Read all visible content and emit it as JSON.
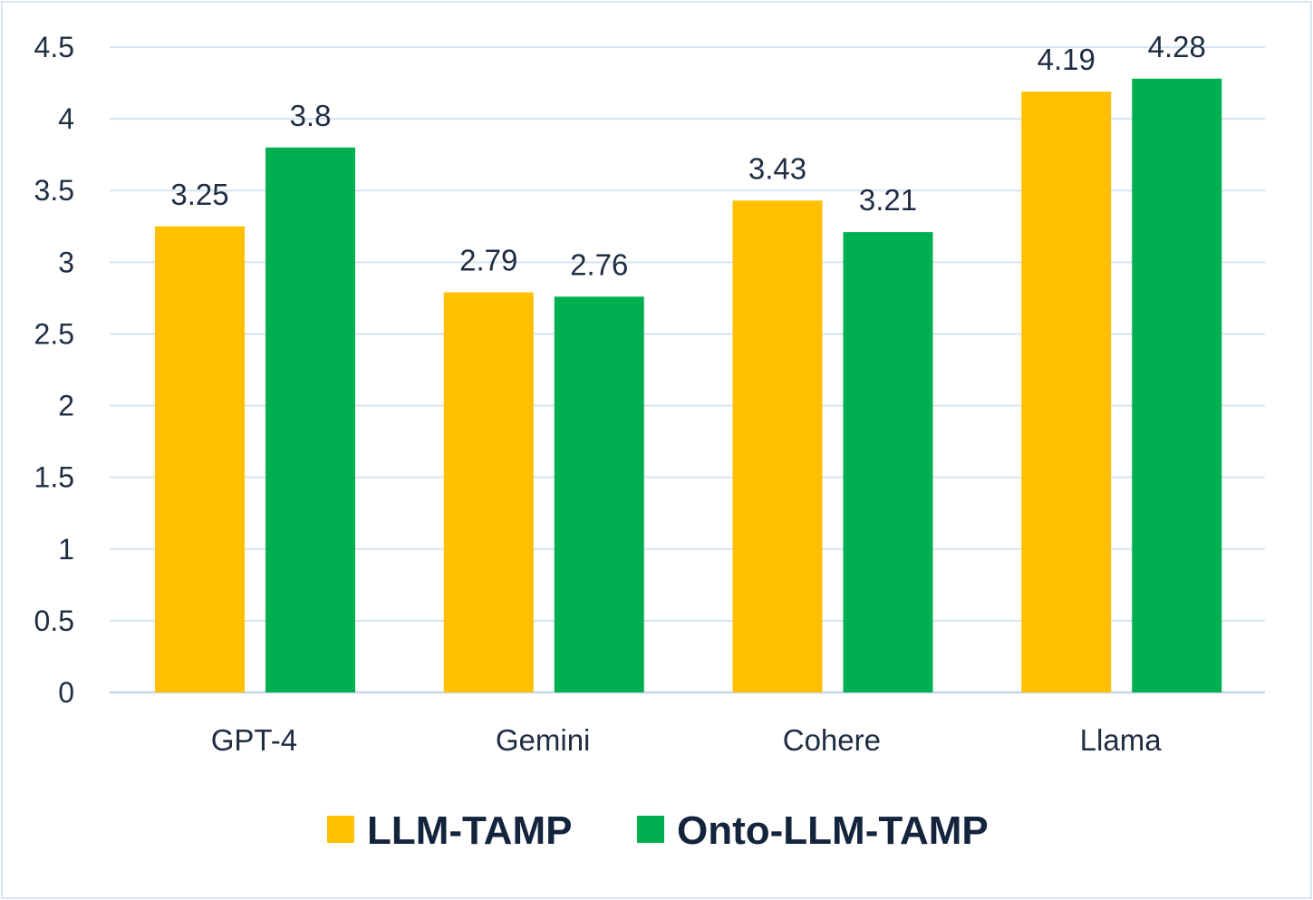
{
  "chart_data": {
    "type": "bar",
    "title": "",
    "xlabel": "",
    "ylabel": "",
    "ylim": [
      0,
      4.5
    ],
    "yticks": [
      0,
      0.5,
      1,
      1.5,
      2,
      2.5,
      3,
      3.5,
      4,
      4.5
    ],
    "ytick_labels": [
      "0",
      "0.5",
      "1",
      "1.5",
      "2",
      "2.5",
      "3",
      "3.5",
      "4",
      "4.5"
    ],
    "grid": true,
    "legend_position": "bottom-center",
    "categories": [
      "GPT-4",
      "Gemini",
      "Cohere",
      "Llama"
    ],
    "series": [
      {
        "name": "LLM-TAMP",
        "color": "#FFC000",
        "values": [
          3.25,
          2.79,
          3.43,
          4.19
        ],
        "labels": [
          "3.25",
          "2.79",
          "3.43",
          "4.19"
        ]
      },
      {
        "name": "Onto-LLM-TAMP",
        "color": "#00B050",
        "values": [
          3.8,
          2.76,
          3.21,
          4.28
        ],
        "labels": [
          "3.8",
          "2.76",
          "3.21",
          "4.28"
        ]
      }
    ]
  },
  "colors": {
    "gridline": "#d7e3f0",
    "axis": "#c6d7ea",
    "text": "#1f2d42",
    "border": "#dbe6f2"
  }
}
